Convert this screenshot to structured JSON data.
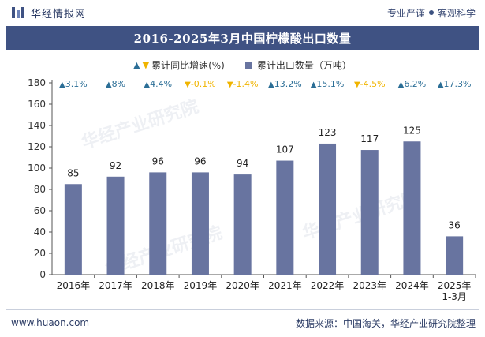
{
  "header": {
    "brand_name": "华经情报网",
    "slogan_left": "专业严谨",
    "slogan_right": "客观科学"
  },
  "chart_data": {
    "type": "bar",
    "title": "2016-2025年3月中国柠檬酸出口数量",
    "categories": [
      "2016年",
      "2017年",
      "2018年",
      "2019年",
      "2020年",
      "2021年",
      "2022年",
      "2023年",
      "2024年",
      "2025年\n1-3月"
    ],
    "series": [
      {
        "name": "累计出口数量（万吨）",
        "values": [
          85,
          92,
          96,
          96,
          94,
          107,
          123,
          117,
          125,
          36
        ],
        "color": "#6874a0"
      }
    ],
    "growth": {
      "name": "累计同比增速(%)",
      "labels": [
        "3.1%",
        "8%",
        "4.4%",
        "-0.1%",
        "-1.4%",
        "13.2%",
        "15.1%",
        "-4.5%",
        "6.2%",
        "17.3%"
      ],
      "directions": [
        "up",
        "up",
        "up",
        "down",
        "down",
        "up",
        "up",
        "down",
        "up",
        "up"
      ]
    },
    "legend": {
      "growth_label": "累计同比增速(%)",
      "bar_label": "累计出口数量（万吨）"
    },
    "ylim": [
      0,
      180
    ],
    "yticks": [
      0,
      20,
      40,
      60,
      80,
      100,
      120,
      140,
      160,
      180
    ],
    "colors": {
      "up": "#2b6e96",
      "down": "#f0b400",
      "bar": "#6874a0",
      "title_bg": "#3f5283"
    }
  },
  "footer": {
    "website": "www.huaon.com",
    "source": "数据来源：中国海关，华经产业研究院整理"
  }
}
